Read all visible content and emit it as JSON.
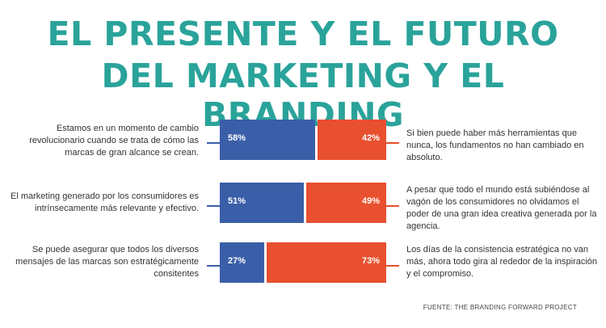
{
  "title": {
    "line1": "EL PRESENTE Y EL FUTURO",
    "line2": "DEL MARKETING Y EL BRANDING"
  },
  "colors": {
    "left": "#3a5ea8",
    "right": "#e8502f",
    "title": "#2aa39a"
  },
  "chart_data": {
    "type": "bar",
    "orientation": "horizontal-stacked",
    "categories": [
      "Estamos en un momento de cambio revolucionario cuando se trata de cómo las marcas de gran alcance se crean.",
      "El marketing generado por los consumidores es intrínsecamente más relevante y efectivo.",
      "Se puede asegurar que todos los diversos mensajes de las marcas son estratégicamente consitentes"
    ],
    "series": [
      {
        "values": [
          58,
          51,
          27
        ],
        "labels": [
          "58%",
          "51%",
          "27%"
        ],
        "color": "#3a5ea8"
      },
      {
        "values": [
          42,
          49,
          73
        ],
        "labels": [
          "42%",
          "49%",
          "73%"
        ],
        "color": "#e8502f"
      }
    ],
    "right_statements": [
      "Si bien puede haber más herramientas que nunca, los fundamentos no han cambiado en absoluto.",
      "A pesar que todo el mundo está subiéndose al vagón de los consumidores no olvidamos el poder de una gran idea creativa generada por la agencia.",
      "Los días de la consistencia estratégica no van más, ahora todo gira al rededor de la inspiración y el compromiso."
    ],
    "xlim": [
      0,
      100
    ]
  },
  "source": "FUENTE: THE BRANDING FORWARD PROJECT"
}
